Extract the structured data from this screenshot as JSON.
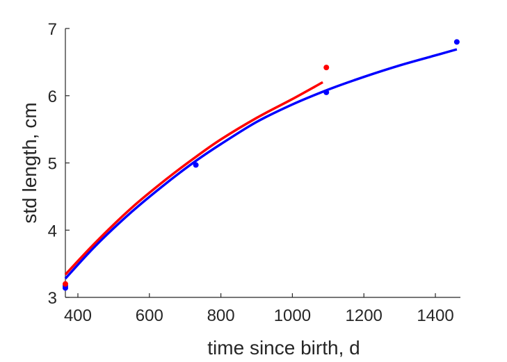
{
  "chart_data": {
    "type": "line",
    "title": "",
    "xlabel": "time since birth, d",
    "ylabel": "std length, cm",
    "xlim": [
      365,
      1470
    ],
    "ylim": [
      3,
      7
    ],
    "xticks": [
      400,
      600,
      800,
      1000,
      1200,
      1400
    ],
    "yticks": [
      3,
      4,
      5,
      6,
      7
    ],
    "xtick_labels": [
      "400",
      "600",
      "800",
      "1000",
      "1200",
      "1400"
    ],
    "ytick_labels": [
      "3",
      "4",
      "5",
      "6",
      "7"
    ],
    "grid": false,
    "legend": "none",
    "series": [
      {
        "kind": "line",
        "color": "#0000ff",
        "x": [
          365,
          450,
          550,
          650,
          730,
          800,
          900,
          1000,
          1100,
          1200,
          1300,
          1400,
          1460
        ],
        "y": [
          3.28,
          3.77,
          4.27,
          4.71,
          5.03,
          5.28,
          5.61,
          5.87,
          6.09,
          6.28,
          6.45,
          6.6,
          6.69
        ]
      },
      {
        "kind": "line",
        "color": "#ff0000",
        "x": [
          365,
          450,
          550,
          650,
          730,
          800,
          900,
          1000,
          1085
        ],
        "y": [
          3.34,
          3.82,
          4.33,
          4.77,
          5.09,
          5.35,
          5.67,
          5.95,
          6.2
        ]
      },
      {
        "kind": "scatter",
        "color": "#0000ff",
        "x": [
          365,
          365,
          730,
          1095,
          1460
        ],
        "y": [
          3.14,
          3.17,
          4.97,
          6.05,
          6.8
        ]
      },
      {
        "kind": "scatter",
        "color": "#ff0000",
        "x": [
          365,
          1095
        ],
        "y": [
          3.2,
          6.42
        ]
      }
    ]
  }
}
